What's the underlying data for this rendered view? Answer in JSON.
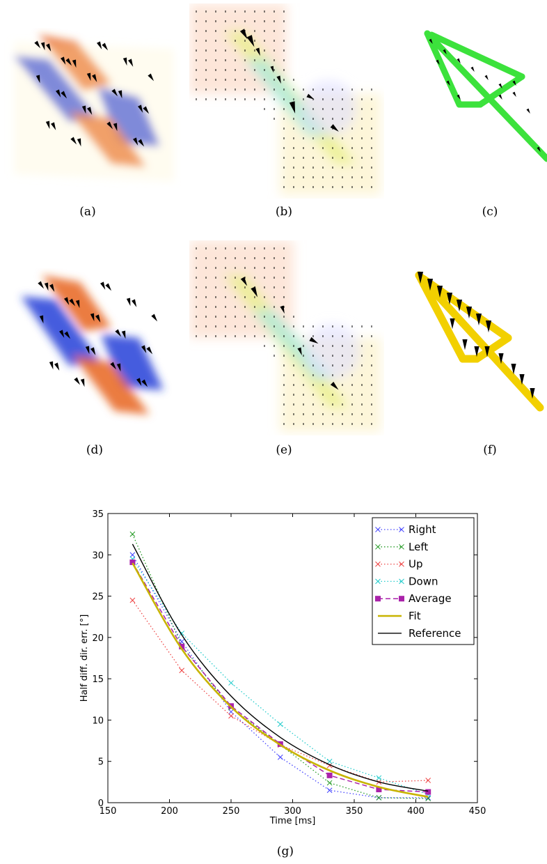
{
  "captions": [
    "(a)",
    "(b)",
    "(c)",
    "(d)",
    "(e)",
    "(f)",
    "(g)"
  ],
  "colors": {
    "orange": "#e8641c",
    "blue": "#2740d8",
    "green": "#3ce23c",
    "yellow": "#f2d000",
    "arrow": "#000000"
  },
  "chart_data": {
    "type": "line",
    "title": "",
    "xlabel": "Time [ms]",
    "ylabel": "Half diff. dir. err. [°]",
    "xlim": [
      150,
      450
    ],
    "ylim": [
      0,
      35
    ],
    "xticks": [
      150,
      200,
      250,
      300,
      350,
      400,
      450
    ],
    "yticks": [
      0,
      5,
      10,
      15,
      20,
      25,
      30,
      35
    ],
    "grid": false,
    "legend_position": "top-right",
    "x": [
      170,
      210,
      250,
      290,
      330,
      370,
      410
    ],
    "series": [
      {
        "name": "Right",
        "values": [
          30.0,
          19.5,
          11.0,
          5.5,
          1.5,
          0.6,
          0.6
        ],
        "color": "#4444ff",
        "style": "dotted",
        "marker": "x"
      },
      {
        "name": "Left",
        "values": [
          32.5,
          19.0,
          11.5,
          7.0,
          2.4,
          0.6,
          0.5
        ],
        "color": "#229922",
        "style": "dotted",
        "marker": "x"
      },
      {
        "name": "Up",
        "values": [
          24.5,
          16.0,
          10.5,
          7.0,
          4.5,
          2.5,
          2.7
        ],
        "color": "#ee4444",
        "style": "dotted",
        "marker": "x"
      },
      {
        "name": "Down",
        "values": [
          29.5,
          20.5,
          14.5,
          9.5,
          5.0,
          3.0,
          1.0
        ],
        "color": "#22cccc",
        "style": "dotted",
        "marker": "x"
      },
      {
        "name": "Average",
        "values": [
          29.1,
          18.9,
          11.7,
          7.1,
          3.3,
          1.6,
          1.3
        ],
        "color": "#aa22aa",
        "style": "dashed",
        "marker": "square"
      },
      {
        "name": "Fit",
        "values": [
          29.0,
          18.6,
          11.6,
          7.0,
          3.9,
          1.9,
          0.7
        ],
        "color": "#c8b400",
        "style": "solid",
        "marker": "none"
      },
      {
        "name": "Reference",
        "values": [
          31.3,
          20.3,
          12.9,
          7.9,
          4.6,
          2.5,
          1.4
        ],
        "color": "#000000",
        "style": "solid",
        "marker": "none"
      }
    ]
  }
}
